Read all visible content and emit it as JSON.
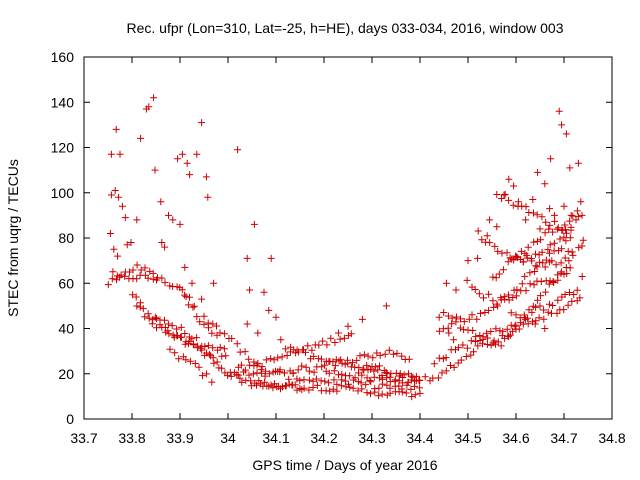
{
  "chart_data": {
    "type": "scatter",
    "title": "Rec. ufpr (Lon=310, Lat=-25, h=HE), days 033-034, 2016, window 003",
    "xlabel": "GPS time / Days of year 2016",
    "ylabel": "STEC from uqrg / TECUs",
    "xlim": [
      33.7,
      34.8
    ],
    "ylim": [
      0,
      160
    ],
    "xticks": [
      "33.7",
      "33.8",
      "33.9",
      "34",
      "34.1",
      "34.2",
      "34.3",
      "34.4",
      "34.5",
      "34.6",
      "34.7",
      "34.8"
    ],
    "yticks": [
      "0",
      "20",
      "40",
      "60",
      "80",
      "100",
      "120",
      "140",
      "160"
    ],
    "grid": false,
    "legend": "none",
    "marker": "plus",
    "color": "#cc0000"
  }
}
